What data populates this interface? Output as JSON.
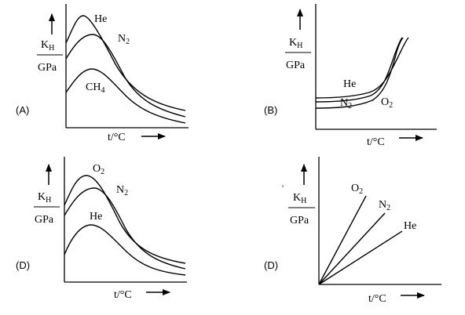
{
  "panels": [
    {
      "option_label": "(A)",
      "ylabel_top": "K",
      "ylabel_sub": "H",
      "ylabel_bottom": "GPa",
      "xlabel": "t/°C",
      "curves": [
        {
          "text": "He",
          "sub": ""
        },
        {
          "text": "N",
          "sub": "2"
        },
        {
          "text": "CH",
          "sub": "4"
        }
      ]
    },
    {
      "option_label": "(B)",
      "ylabel_top": "K",
      "ylabel_sub": "H",
      "ylabel_bottom": "GPa",
      "xlabel": "t/°C",
      "curves": [
        {
          "text": "He",
          "sub": ""
        },
        {
          "text": "N",
          "sub": "2"
        },
        {
          "text": "O",
          "sub": "2"
        }
      ]
    },
    {
      "option_label": "(D)",
      "ylabel_top": "K",
      "ylabel_sub": "H",
      "ylabel_bottom": "GPa",
      "xlabel": "t/°C",
      "curves": [
        {
          "text": "O",
          "sub": "2"
        },
        {
          "text": "N",
          "sub": "2"
        },
        {
          "text": "He",
          "sub": ""
        }
      ]
    },
    {
      "option_label": "(D)",
      "ylabel_top": "K",
      "ylabel_sub": "H",
      "ylabel_bottom": "GPa",
      "xlabel": "t/°C",
      "curves": [
        {
          "text": "O",
          "sub": "2"
        },
        {
          "text": "N",
          "sub": "2"
        },
        {
          "text": "He",
          "sub": ""
        }
      ]
    }
  ],
  "chart_data": [
    {
      "type": "line",
      "series": [
        {
          "name": "He"
        },
        {
          "name": "N2"
        },
        {
          "name": "CH4"
        }
      ]
    },
    {
      "type": "line",
      "series": [
        {
          "name": "He"
        },
        {
          "name": "N2"
        },
        {
          "name": "O2"
        }
      ]
    },
    {
      "type": "line",
      "series": [
        {
          "name": "O2"
        },
        {
          "name": "N2"
        },
        {
          "name": "He"
        }
      ]
    },
    {
      "type": "line",
      "series": [
        {
          "name": "O2"
        },
        {
          "name": "N2"
        },
        {
          "name": "He"
        }
      ]
    }
  ]
}
